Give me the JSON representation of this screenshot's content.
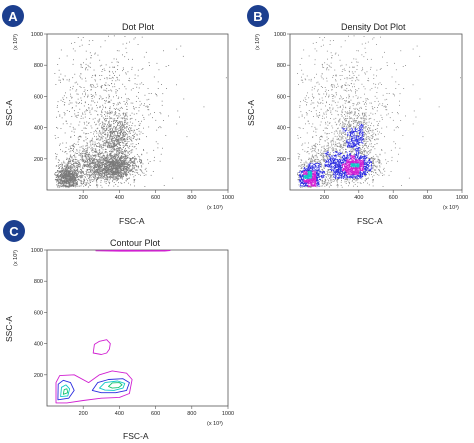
{
  "chart_data": [
    {
      "type": "scatter",
      "panel_label": "A",
      "title": "Dot Plot",
      "xlabel": "FSC-A",
      "ylabel": "SSC-A",
      "x_multiplier": "(x 10³)",
      "y_multiplier": "(x 10³)",
      "xlim": [
        0,
        1000
      ],
      "ylim": [
        0,
        1000
      ],
      "x_ticks": [
        200,
        400,
        600,
        800,
        1000
      ],
      "y_ticks": [
        200,
        400,
        600,
        800,
        1000
      ],
      "series": [
        {
          "color": "#7a7a7a",
          "populations": [
            {
              "cx": 110,
              "cy": 80,
              "sx": 35,
              "sy": 40,
              "n": 900
            },
            {
              "cx": 370,
              "cy": 150,
              "sx": 60,
              "sy": 40,
              "n": 1300
            },
            {
              "cx": 380,
              "cy": 340,
              "sx": 50,
              "sy": 80,
              "n": 700
            },
            {
              "cx": 230,
              "cy": 160,
              "sx": 70,
              "sy": 70,
              "n": 700
            },
            {
              "cx": 300,
              "cy": 520,
              "sx": 180,
              "sy": 250,
              "n": 900
            }
          ]
        }
      ]
    },
    {
      "type": "scatter",
      "panel_label": "B",
      "title": "Density Dot Plot",
      "xlabel": "FSC-A",
      "ylabel": "SSC-A",
      "x_multiplier": "(x 10³)",
      "y_multiplier": "(x 10³)",
      "xlim": [
        0,
        1000
      ],
      "ylim": [
        0,
        1000
      ],
      "x_ticks": [
        200,
        400,
        600,
        800,
        1000
      ],
      "y_ticks": [
        200,
        400,
        600,
        800,
        1000
      ],
      "density_colors": [
        "#8a8a8a",
        "#2a2adf",
        "#d11fd1",
        "#11c8c8",
        "#16c56e"
      ],
      "series": [
        {
          "color": "density",
          "populations": [
            {
              "cx": 110,
              "cy": 80,
              "sx": 35,
              "sy": 40,
              "n": 900
            },
            {
              "cx": 370,
              "cy": 150,
              "sx": 60,
              "sy": 40,
              "n": 1300
            },
            {
              "cx": 380,
              "cy": 340,
              "sx": 50,
              "sy": 80,
              "n": 700
            },
            {
              "cx": 230,
              "cy": 160,
              "sx": 70,
              "sy": 70,
              "n": 700
            },
            {
              "cx": 300,
              "cy": 520,
              "sx": 180,
              "sy": 250,
              "n": 900
            }
          ]
        }
      ]
    },
    {
      "type": "contour",
      "panel_label": "C",
      "title": "Contour Plot",
      "xlabel": "FSC-A",
      "ylabel": "SSC-A",
      "x_multiplier": "(x 10³)",
      "y_multiplier": "(x 10³)",
      "xlim": [
        0,
        1000
      ],
      "ylim": [
        0,
        1000
      ],
      "x_ticks": [
        200,
        400,
        600,
        800,
        1000
      ],
      "y_ticks": [
        200,
        400,
        600,
        800,
        1000
      ],
      "contours": [
        {
          "color": "#d11fd1",
          "points": [
            [
              50,
              20
            ],
            [
              50,
              150
            ],
            [
              70,
              195
            ],
            [
              150,
              200
            ],
            [
              230,
              150
            ],
            [
              290,
              200
            ],
            [
              360,
              225
            ],
            [
              440,
              210
            ],
            [
              470,
              170
            ],
            [
              455,
              80
            ],
            [
              400,
              55
            ],
            [
              300,
              50
            ],
            [
              200,
              35
            ],
            [
              110,
              20
            ]
          ]
        },
        {
          "color": "#d11fd1",
          "points": [
            [
              255,
              340
            ],
            [
              262,
              395
            ],
            [
              290,
              415
            ],
            [
              330,
              425
            ],
            [
              350,
              400
            ],
            [
              345,
              365
            ],
            [
              330,
              340
            ],
            [
              300,
              330
            ]
          ]
        },
        {
          "color": "#d11fd1",
          "points": [
            [
              270,
              995
            ],
            [
              400,
              998
            ],
            [
              550,
              996
            ],
            [
              680,
              997
            ],
            [
              650,
              993
            ],
            [
              400,
              992
            ]
          ]
        },
        {
          "color": "#2a2adf",
          "points": [
            [
              60,
              40
            ],
            [
              62,
              140
            ],
            [
              90,
              165
            ],
            [
              130,
              150
            ],
            [
              150,
              100
            ],
            [
              120,
              50
            ]
          ]
        },
        {
          "color": "#2a2adf",
          "points": [
            [
              250,
              100
            ],
            [
              280,
              150
            ],
            [
              340,
              170
            ],
            [
              420,
              175
            ],
            [
              455,
              150
            ],
            [
              440,
              100
            ],
            [
              380,
              85
            ],
            [
              300,
              85
            ]
          ]
        },
        {
          "color": "#11c8c8",
          "points": [
            [
              75,
              60
            ],
            [
              80,
              120
            ],
            [
              105,
              135
            ],
            [
              125,
              110
            ],
            [
              115,
              65
            ]
          ]
        },
        {
          "color": "#11c8c8",
          "points": [
            [
              290,
              115
            ],
            [
              320,
              150
            ],
            [
              390,
              160
            ],
            [
              430,
              145
            ],
            [
              420,
              115
            ],
            [
              370,
              100
            ],
            [
              320,
              102
            ]
          ]
        },
        {
          "color": "#16c56e",
          "points": [
            [
              90,
              75
            ],
            [
              95,
              105
            ],
            [
              110,
              110
            ],
            [
              115,
              85
            ]
          ]
        },
        {
          "color": "#16c56e",
          "points": [
            [
              340,
              125
            ],
            [
              360,
              148
            ],
            [
              400,
              150
            ],
            [
              415,
              135
            ],
            [
              395,
              118
            ],
            [
              360,
              115
            ]
          ]
        }
      ]
    }
  ]
}
